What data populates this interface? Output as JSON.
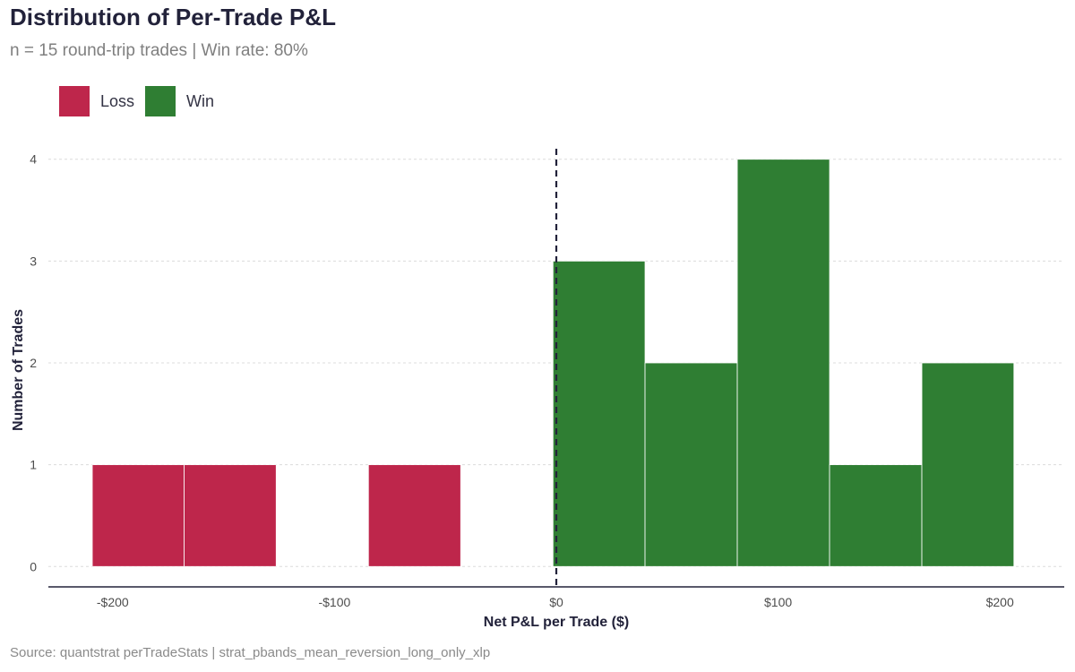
{
  "chart_data": {
    "type": "bar",
    "title": "Distribution of Per-Trade P&L",
    "subtitle": "n = 15 round-trip trades  |  Win rate: 80%",
    "caption": "Source: quantstrat perTradeStats | strat_pbands_mean_reversion_long_only_xlp",
    "xlabel": "Net P&L per Trade ($)",
    "ylabel": "Number of Trades",
    "xlim": [
      -229,
      229
    ],
    "ylim": [
      -0.2,
      4.2
    ],
    "x_ticks": [
      {
        "value": -200,
        "label": "-$200"
      },
      {
        "value": -100,
        "label": "-$100"
      },
      {
        "value": 0,
        "label": "$0"
      },
      {
        "value": 100,
        "label": "$100"
      },
      {
        "value": 200,
        "label": "$200"
      }
    ],
    "y_ticks": [
      0,
      1,
      2,
      3,
      4
    ],
    "grid": "horizontal",
    "legend": [
      {
        "name": "Loss",
        "color": "#be264b"
      },
      {
        "name": "Win",
        "color": "#2f7e33"
      }
    ],
    "legend_position": "top-left",
    "reference_line": {
      "x": 0,
      "style": "dashed",
      "color": "#22223a"
    },
    "bins": [
      {
        "x0": -209.2,
        "x1": -167.8,
        "count": 1,
        "group": "Loss"
      },
      {
        "x0": -167.8,
        "x1": -126.3,
        "count": 1,
        "group": "Loss"
      },
      {
        "x0": -126.3,
        "x1": -84.7,
        "count": 0,
        "group": "Loss"
      },
      {
        "x0": -84.7,
        "x1": -43.1,
        "count": 1,
        "group": "Loss"
      },
      {
        "x0": -1.5,
        "x1": 40.0,
        "count": 3,
        "group": "Win"
      },
      {
        "x0": 40.0,
        "x1": 81.6,
        "count": 2,
        "group": "Win"
      },
      {
        "x0": 81.6,
        "x1": 123.2,
        "count": 4,
        "group": "Win"
      },
      {
        "x0": 123.2,
        "x1": 164.8,
        "count": 1,
        "group": "Win"
      },
      {
        "x0": 164.8,
        "x1": 206.3,
        "count": 2,
        "group": "Win"
      }
    ]
  }
}
